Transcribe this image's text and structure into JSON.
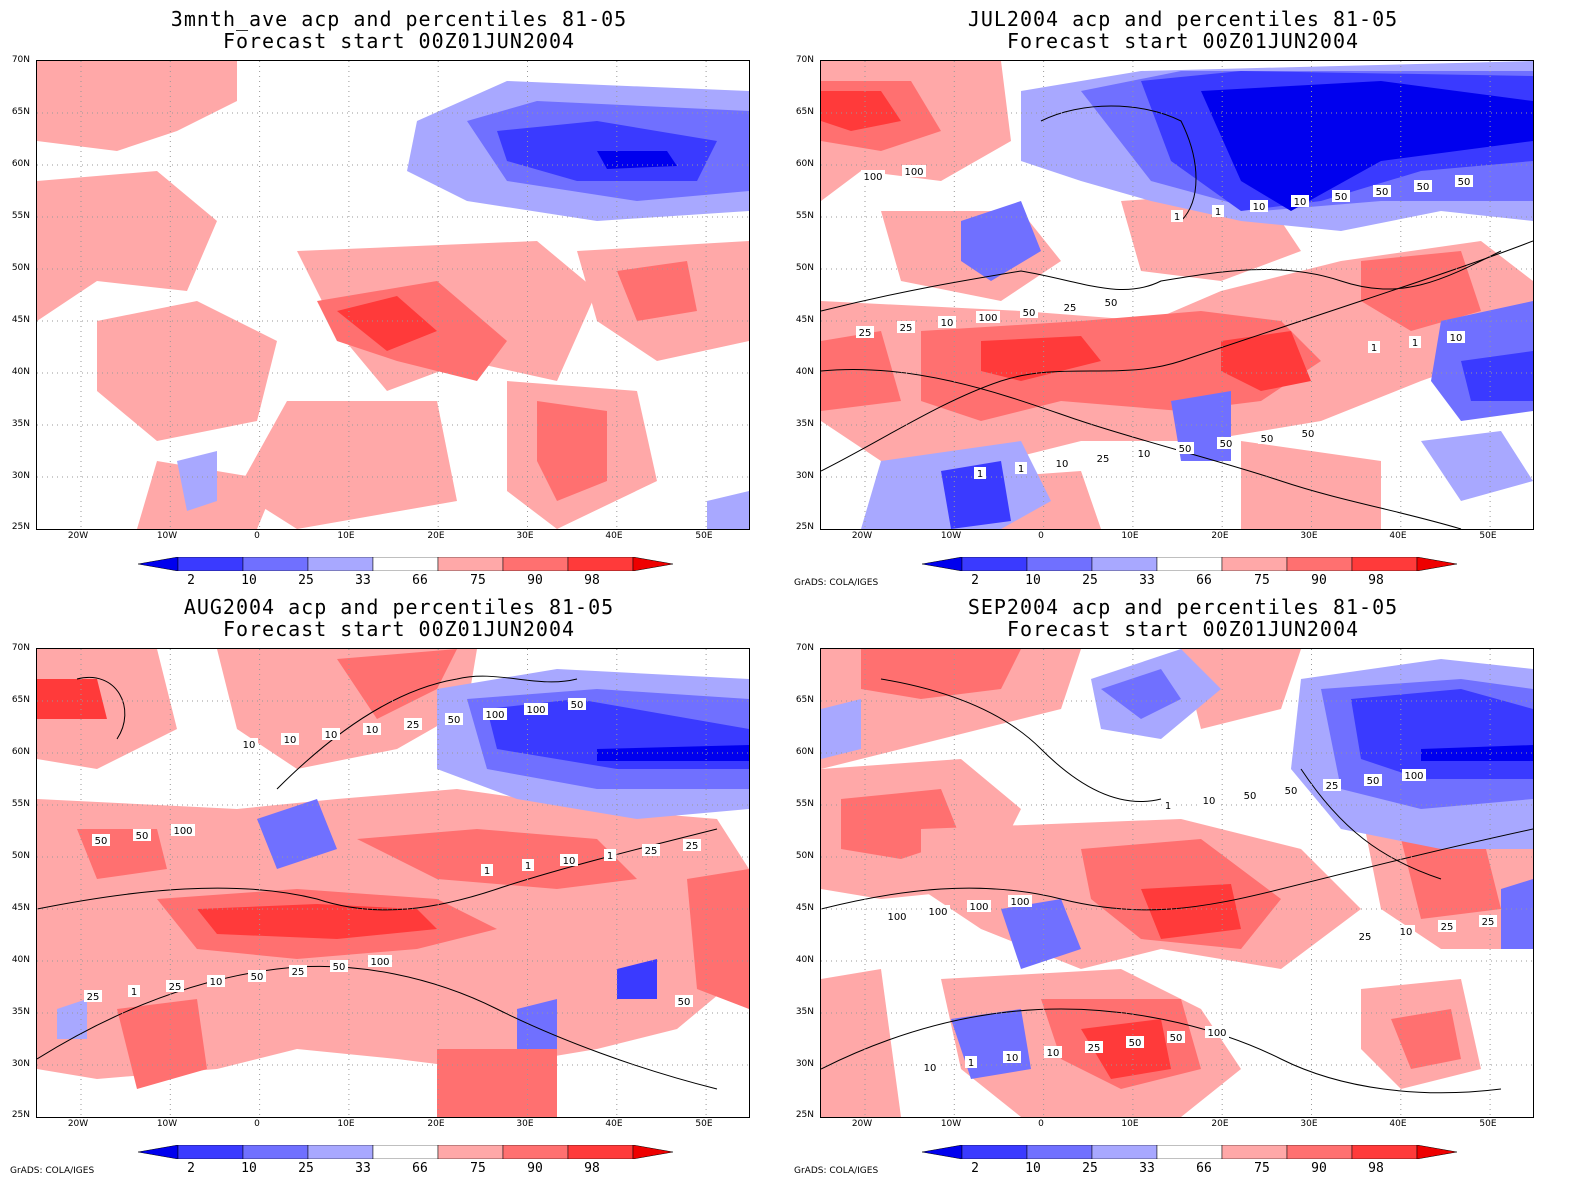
{
  "legend": {
    "labels": [
      "2",
      "10",
      "25",
      "33",
      "66",
      "75",
      "90",
      "98"
    ],
    "colors": [
      "#0000ee",
      "#3a3aff",
      "#7070ff",
      "#a8a8ff",
      "#ffffff",
      "#ffa8a8",
      "#ff7070",
      "#ff3a3a",
      "#ee0000"
    ]
  },
  "axes": {
    "lat_labels": [
      "70N",
      "65N",
      "60N",
      "55N",
      "50N",
      "45N",
      "40N",
      "35N",
      "30N",
      "25N"
    ],
    "lon_labels": [
      "20W",
      "10W",
      "0",
      "10E",
      "20E",
      "30E",
      "40E",
      "50E"
    ]
  },
  "credit": "GrADS: COLA/IGES",
  "panels": [
    {
      "title1": "3mnth_ave acp and percentiles 81-05",
      "title2": "Forecast start 00Z01JUN2004",
      "show_credit": false,
      "contour_labels": []
    },
    {
      "title1": "JUL2004 acp and percentiles 81-05",
      "title2": "Forecast start 00Z01JUN2004",
      "show_credit": true,
      "contour_labels": [
        "100",
        "50",
        "50",
        "100",
        "25",
        "50",
        "50",
        "50",
        "50",
        "50",
        "100",
        "50",
        "50",
        "10",
        "10",
        "50",
        "25",
        "25",
        "10",
        "25",
        "10",
        "10",
        "10",
        "1",
        "1",
        "1",
        "1",
        "1",
        "1"
      ]
    },
    {
      "title1": "AUG2004 acp and percentiles 81-05",
      "title2": "Forecast start 00Z01JUN2004",
      "show_credit": true,
      "contour_labels": [
        "100",
        "100",
        "50",
        "50",
        "50",
        "100",
        "50",
        "25",
        "100",
        "25",
        "50",
        "50",
        "25",
        "10",
        "25",
        "1",
        "25",
        "10",
        "10",
        "1",
        "10",
        "1",
        "25",
        "10",
        "1",
        "50",
        "10"
      ]
    },
    {
      "title1": "SEP2004 acp and percentiles 81-05",
      "title2": "Forecast start 00Z01JUN2004",
      "show_credit": true,
      "contour_labels": [
        "100",
        "100",
        "100",
        "100",
        "50",
        "50",
        "100",
        "50",
        "25",
        "100",
        "25",
        "50",
        "25",
        "10",
        "50",
        "25",
        "10",
        "10",
        "10",
        "1",
        "1",
        "25",
        "10"
      ]
    }
  ]
}
